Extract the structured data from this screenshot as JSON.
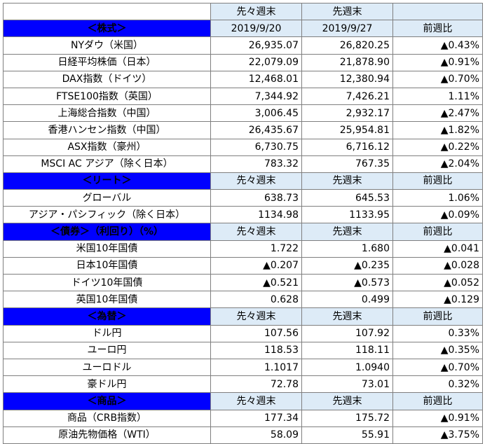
{
  "header": {
    "label_prev2": "先々週末",
    "label_prev1": "先週末",
    "date_prev2": "2019/9/20",
    "date_prev1": "2019/9/27",
    "label_change": "前週比"
  },
  "sections": [
    {
      "title": "＜株式＞",
      "rows": [
        {
          "label": "NYダウ（米国）",
          "prev2": "26,935.07",
          "prev1": "26,820.25",
          "change": "▲0.43%",
          "negative": true
        },
        {
          "label": "日経平均株価（日本）",
          "prev2": "22,079.09",
          "prev1": "21,878.90",
          "change": "▲0.91%",
          "negative": true
        },
        {
          "label": "DAX指数（ドイツ）",
          "prev2": "12,468.01",
          "prev1": "12,380.94",
          "change": "▲0.70%",
          "negative": true
        },
        {
          "label": "FTSE100指数（英国）",
          "prev2": "7,344.92",
          "prev1": "7,426.21",
          "change": "1.11%",
          "negative": false
        },
        {
          "label": "上海総合指数（中国）",
          "prev2": "3,006.45",
          "prev1": "2,932.17",
          "change": "▲2.47%",
          "negative": true
        },
        {
          "label": "香港ハンセン指数（中国）",
          "prev2": "26,435.67",
          "prev1": "25,954.81",
          "change": "▲1.82%",
          "negative": true
        },
        {
          "label": "ASX指数（豪州）",
          "prev2": "6,730.75",
          "prev1": "6,716.12",
          "change": "▲0.22%",
          "negative": true
        },
        {
          "label": "MSCI AC アジア（除く日本）",
          "prev2": "783.32",
          "prev1": "767.35",
          "change": "▲2.04%",
          "negative": true
        }
      ]
    },
    {
      "title": "＜リート＞",
      "rows": [
        {
          "label": "グローバル",
          "prev2": "638.73",
          "prev1": "645.53",
          "change": "1.06%",
          "negative": false
        },
        {
          "label": "アジア・パシフィック（除く日本）",
          "prev2": "1134.98",
          "prev1": "1133.95",
          "change": "▲0.09%",
          "negative": true
        }
      ]
    },
    {
      "title": "＜債券＞（利回り）（%）",
      "rows": [
        {
          "label": "米国10年国債",
          "prev2": "1.722",
          "prev1": "1.680",
          "change": "▲0.041",
          "negative": true
        },
        {
          "label": "日本10年国債",
          "prev2": "▲0.207",
          "prev1": "▲0.235",
          "change": "▲0.028",
          "negative": true,
          "prev2_negative": true,
          "prev1_negative": true
        },
        {
          "label": "ドイツ10年国債",
          "prev2": "▲0.521",
          "prev1": "▲0.573",
          "change": "▲0.052",
          "negative": true,
          "prev2_negative": true,
          "prev1_negative": true
        },
        {
          "label": "英国10年国債",
          "prev2": "0.628",
          "prev1": "0.499",
          "change": "▲0.129",
          "negative": true
        }
      ]
    },
    {
      "title": "＜為替＞",
      "rows": [
        {
          "label": "ドル円",
          "prev2": "107.56",
          "prev1": "107.92",
          "change": "0.33%",
          "negative": false
        },
        {
          "label": "ユーロ円",
          "prev2": "118.53",
          "prev1": "118.11",
          "change": "▲0.35%",
          "negative": true
        },
        {
          "label": "ユーロドル",
          "prev2": "1.1017",
          "prev1": "1.0940",
          "change": "▲0.70%",
          "negative": true
        },
        {
          "label": "豪ドル円",
          "prev2": "72.78",
          "prev1": "73.01",
          "change": "0.32%",
          "negative": false
        }
      ]
    },
    {
      "title": "＜商品＞",
      "rows": [
        {
          "label": "商品（CRB指数）",
          "prev2": "177.34",
          "prev1": "175.72",
          "change": "▲0.91%",
          "negative": true
        },
        {
          "label": "原油先物価格（WTI）",
          "prev2": "58.09",
          "prev1": "55.91",
          "change": "▲3.75%",
          "negative": false,
          "positive_triangle": true
        }
      ]
    }
  ],
  "colors": {
    "section_bg": "#0000ff",
    "header_bg": "#ddebf7",
    "negative_text": "#e0191f",
    "border": "#7f7f7f"
  }
}
